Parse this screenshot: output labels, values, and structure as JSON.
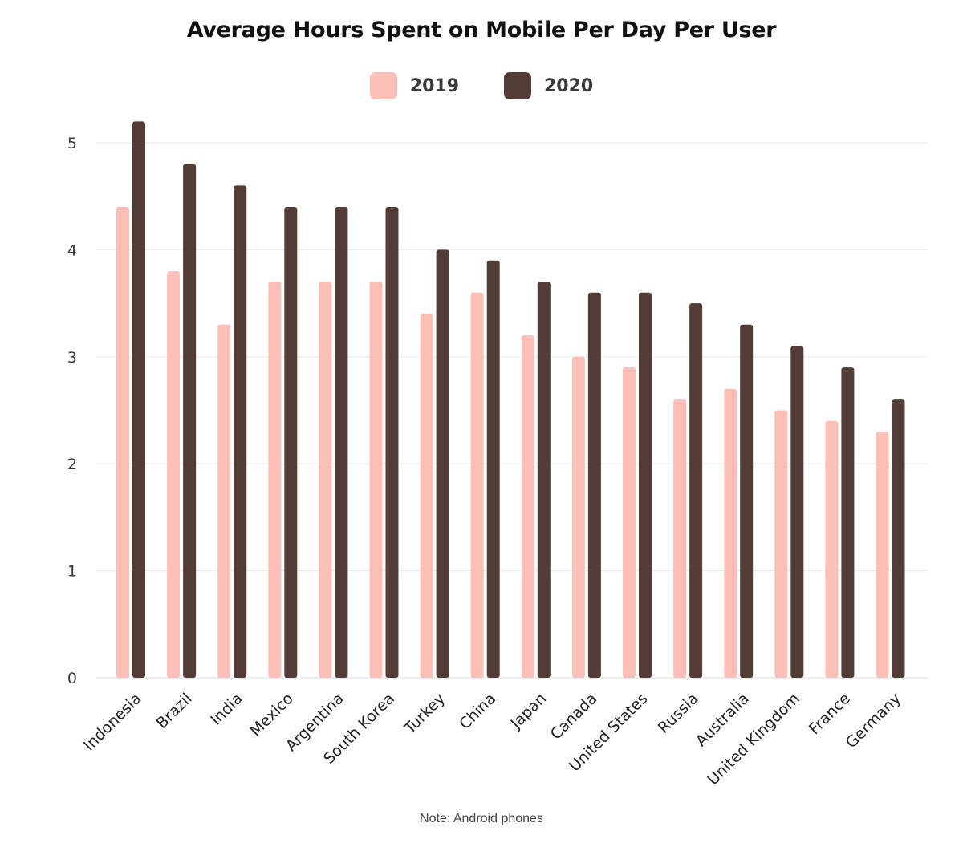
{
  "chart_data": {
    "type": "bar",
    "title": "Average Hours Spent on Mobile Per Day Per User",
    "note": "Note: Android phones",
    "categories": [
      "Indonesia",
      "Brazil",
      "India",
      "Mexico",
      "Argentina",
      "South Korea",
      "Turkey",
      "China",
      "Japan",
      "Canada",
      "United States",
      "Russia",
      "Australia",
      "United Kingdom",
      "France",
      "Germany"
    ],
    "series": [
      {
        "name": "2019",
        "color": "#fcbfb8",
        "values": [
          4.4,
          3.8,
          3.3,
          3.7,
          3.7,
          3.7,
          3.4,
          3.6,
          3.2,
          3.0,
          2.9,
          2.6,
          2.7,
          2.5,
          2.4,
          2.3
        ]
      },
      {
        "name": "2020",
        "color": "#523c35",
        "values": [
          5.2,
          4.8,
          4.6,
          4.4,
          4.4,
          4.4,
          4.0,
          3.9,
          3.7,
          3.6,
          3.6,
          3.5,
          3.3,
          3.1,
          2.9,
          2.6
        ]
      }
    ],
    "ylim": [
      0,
      5.2
    ],
    "yticks": [
      "0",
      "1",
      "2",
      "3",
      "4",
      "5"
    ],
    "grid": true,
    "legend_position": "top-center",
    "xlabel": "",
    "ylabel": ""
  }
}
